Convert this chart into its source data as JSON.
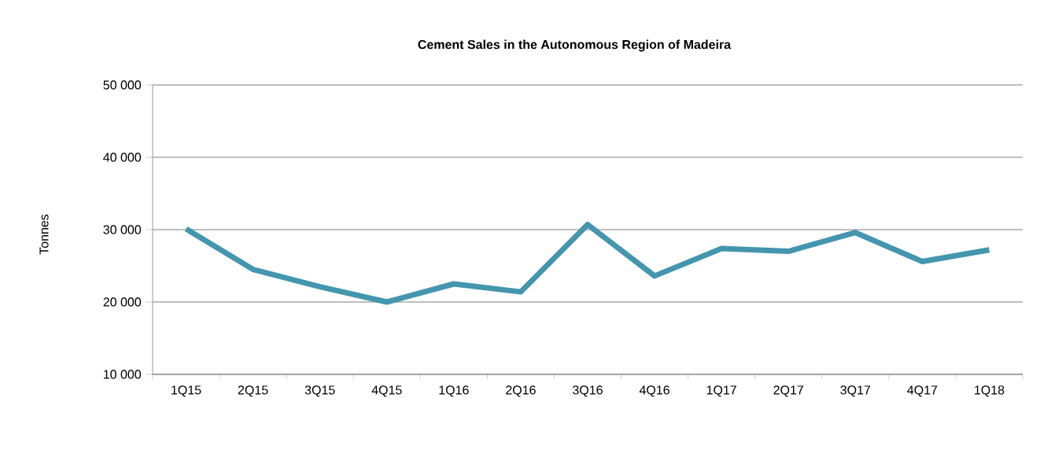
{
  "chart_data": {
    "type": "line",
    "title": "Cement Sales in the Autonomous  Region of Madeira",
    "ylabel": "Tonnes",
    "categories": [
      "1Q15",
      "2Q15",
      "3Q15",
      "4Q15",
      "1Q16",
      "2Q16",
      "3Q16",
      "4Q16",
      "1Q17",
      "2Q17",
      "3Q17",
      "4Q17",
      "1Q18"
    ],
    "series": [
      {
        "color": "#4396ad",
        "values": [
          30100,
          24500,
          22100,
          20000,
          22500,
          21400,
          30700,
          23600,
          27400,
          27000,
          29600,
          25600,
          27200
        ]
      }
    ],
    "ylim": [
      10000,
      50000
    ],
    "yticks": [
      {
        "value": 10000,
        "label": "10 000"
      },
      {
        "value": 20000,
        "label": "20 000"
      },
      {
        "value": 30000,
        "label": "30 000"
      },
      {
        "value": 40000,
        "label": "40 000"
      },
      {
        "value": 50000,
        "label": "50 000"
      }
    ],
    "grid": "y",
    "legend": false,
    "marker": "none",
    "line_style": "solid"
  }
}
